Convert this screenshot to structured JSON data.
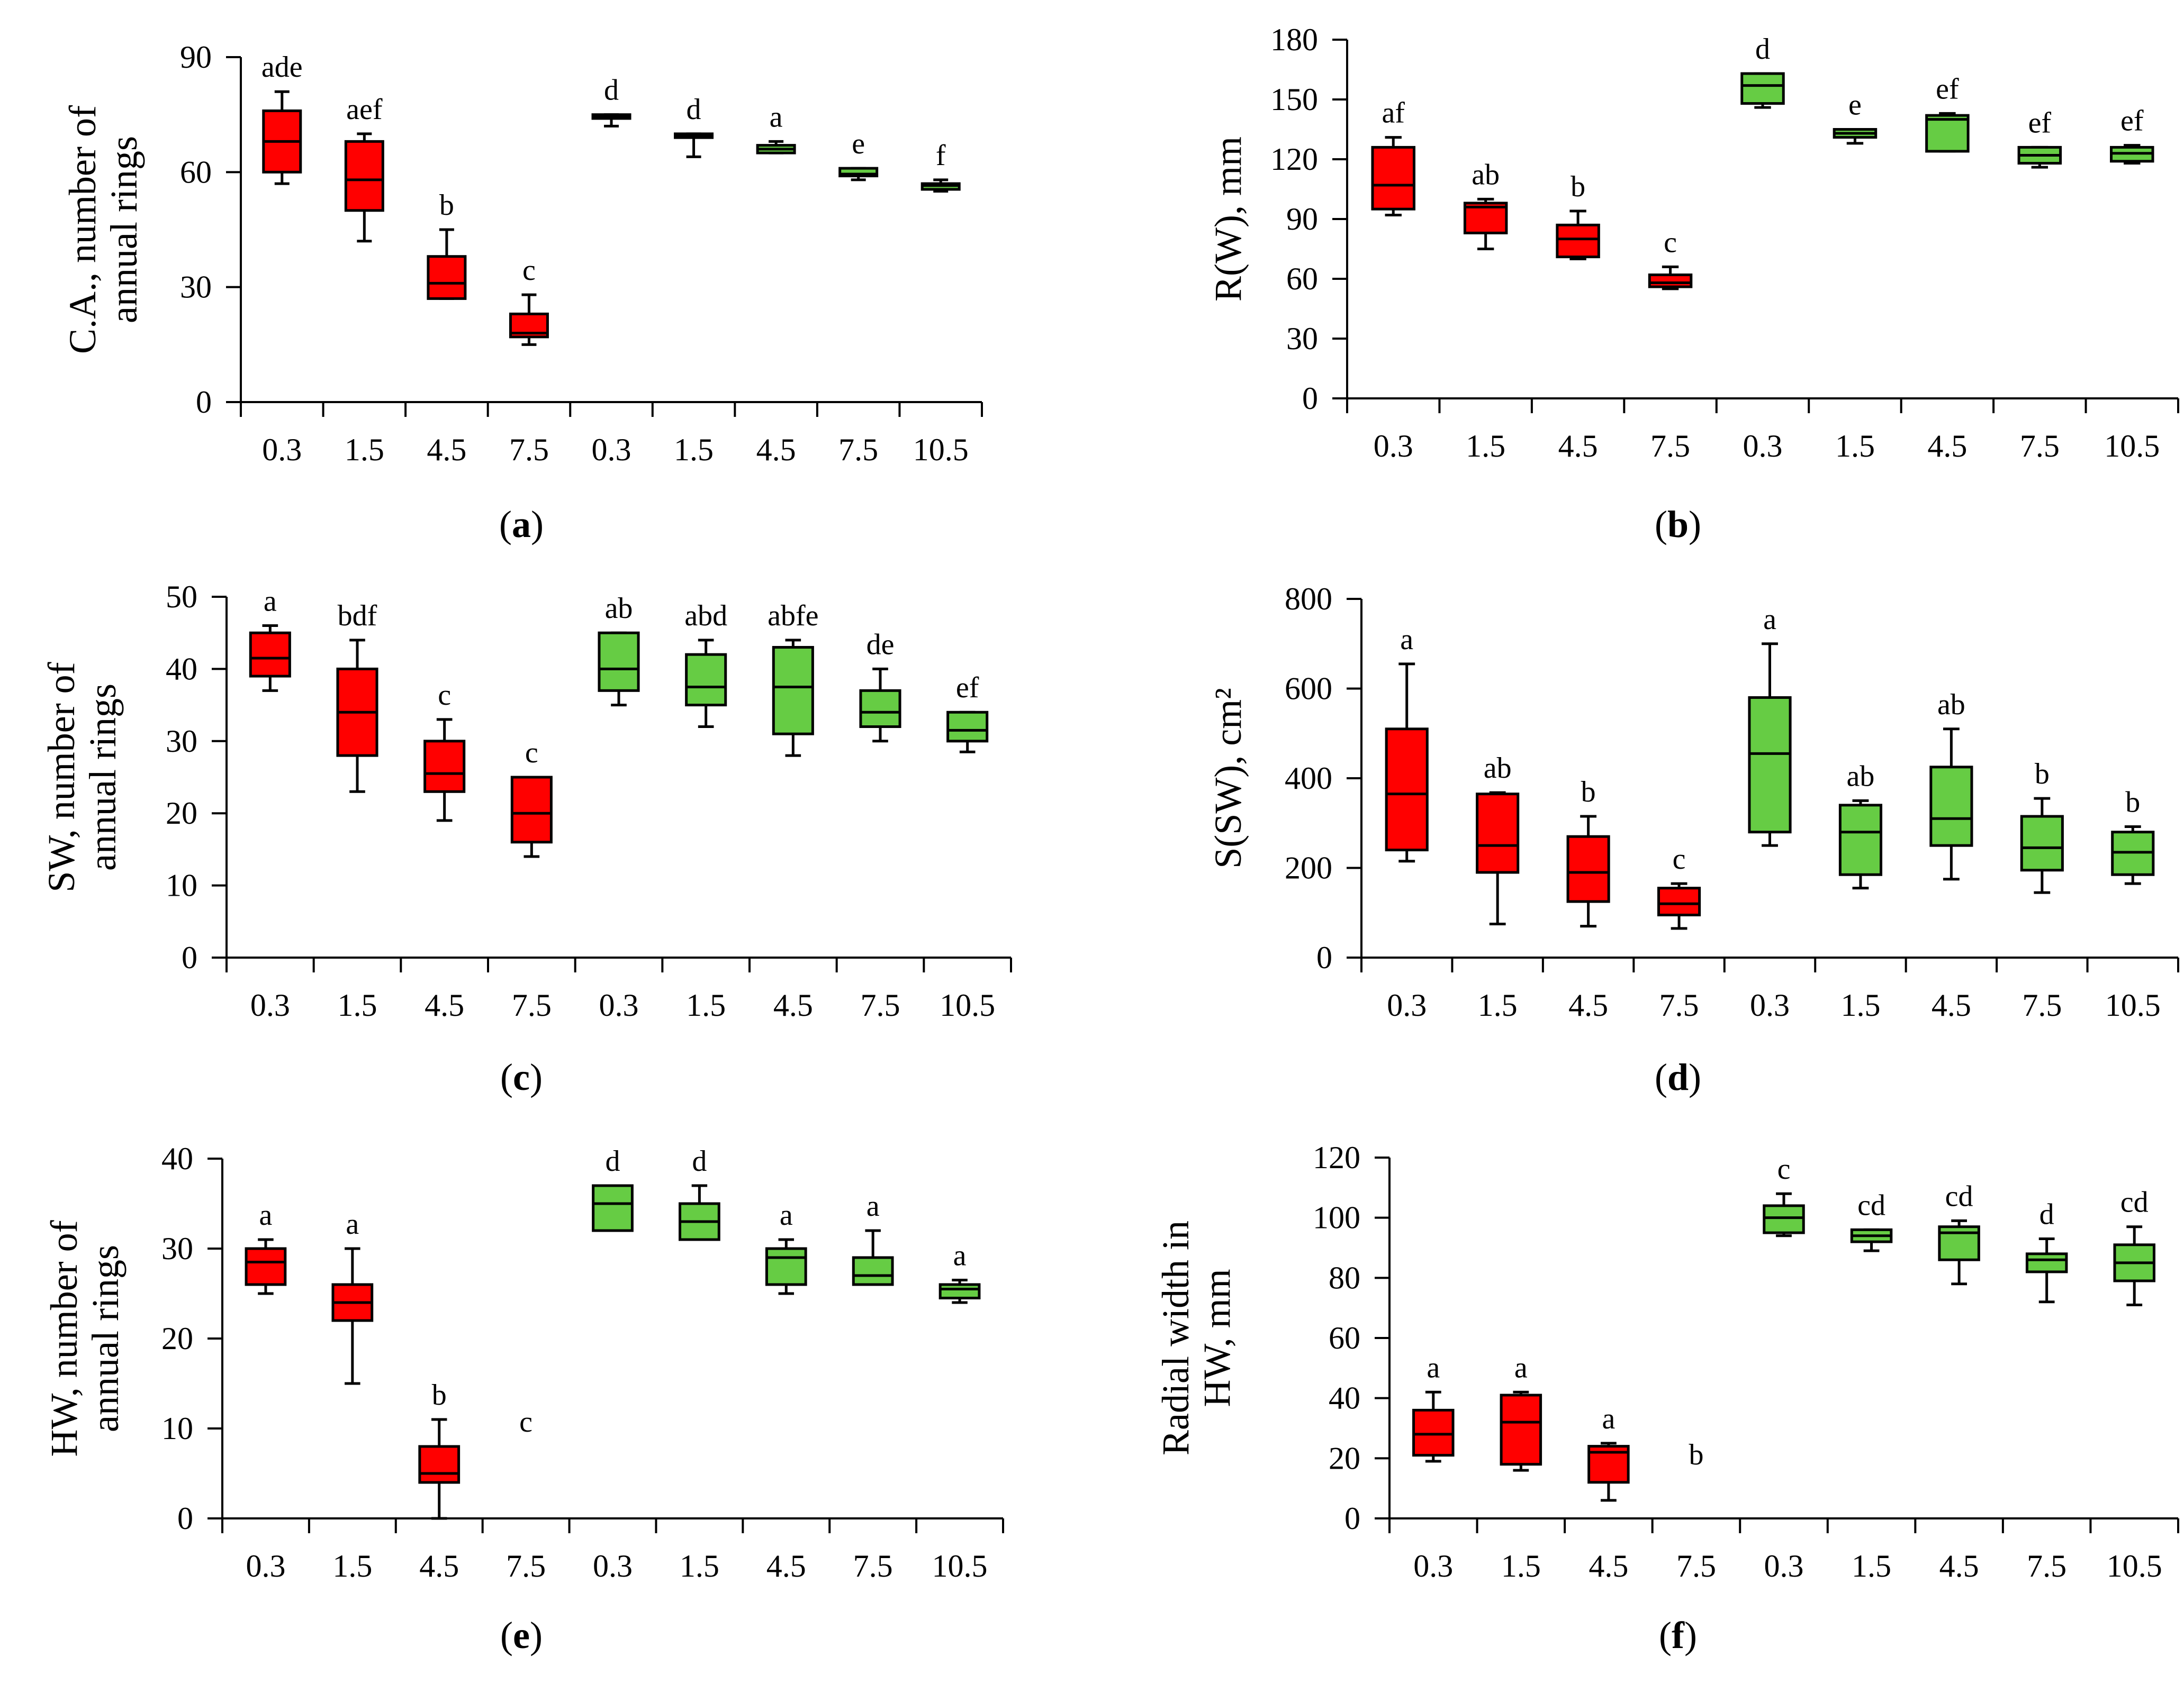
{
  "colors": {
    "red": "#ff0000",
    "green": "#66cc44",
    "stroke": "#000000"
  },
  "chart_data": [
    {
      "panel": "a",
      "caption": "a",
      "type": "box",
      "ylabel": [
        "C.A., number of",
        "annual rings"
      ],
      "ylim": [
        0,
        90
      ],
      "yticks": [
        0,
        30,
        60,
        90
      ],
      "categories": [
        "0.3",
        "1.5",
        "4.5",
        "7.5",
        "0.3",
        "1.5",
        "4.5",
        "7.5",
        "10.5"
      ],
      "boxes": [
        {
          "min": 57,
          "q1": 60,
          "median": 68,
          "q3": 76,
          "max": 81,
          "color": "red",
          "label": "ade"
        },
        {
          "min": 42,
          "q1": 50,
          "median": 58,
          "q3": 68,
          "max": 70,
          "color": "red",
          "label": "aef"
        },
        {
          "min": 27,
          "q1": 27,
          "median": 31,
          "q3": 38,
          "max": 45,
          "color": "red",
          "label": "b"
        },
        {
          "min": 15,
          "q1": 17,
          "median": 18,
          "q3": 23,
          "max": 28,
          "color": "red",
          "label": "c"
        },
        {
          "min": 72,
          "q1": 74,
          "median": 74.5,
          "q3": 75,
          "max": 75,
          "color": "green",
          "label": "d"
        },
        {
          "min": 64,
          "q1": 69,
          "median": 69.5,
          "q3": 70,
          "max": 70,
          "color": "green",
          "label": "d"
        },
        {
          "min": 65,
          "q1": 65,
          "median": 66,
          "q3": 67,
          "max": 68,
          "color": "green",
          "label": "a"
        },
        {
          "min": 58,
          "q1": 59,
          "median": 59.5,
          "q3": 61,
          "max": 61,
          "color": "green",
          "label": "e"
        },
        {
          "min": 55,
          "q1": 55.5,
          "median": 56.5,
          "q3": 57,
          "max": 58,
          "color": "green",
          "label": "f"
        }
      ]
    },
    {
      "panel": "b",
      "caption": "b",
      "type": "box",
      "ylabel": [
        "R(W), mm"
      ],
      "ylim": [
        0,
        180
      ],
      "yticks": [
        0,
        30,
        60,
        90,
        120,
        150,
        180
      ],
      "categories": [
        "0.3",
        "1.5",
        "4.5",
        "7.5",
        "0.3",
        "1.5",
        "4.5",
        "7.5",
        "10.5"
      ],
      "boxes": [
        {
          "min": 92,
          "q1": 95,
          "median": 107,
          "q3": 126,
          "max": 131,
          "color": "red",
          "label": "af"
        },
        {
          "min": 75,
          "q1": 83,
          "median": 96,
          "q3": 98,
          "max": 100,
          "color": "red",
          "label": "ab"
        },
        {
          "min": 70,
          "q1": 71,
          "median": 80,
          "q3": 87,
          "max": 94,
          "color": "red",
          "label": "b"
        },
        {
          "min": 55,
          "q1": 56,
          "median": 58,
          "q3": 62,
          "max": 66,
          "color": "red",
          "label": "c"
        },
        {
          "min": 146,
          "q1": 148,
          "median": 157,
          "q3": 163,
          "max": 163,
          "color": "green",
          "label": "d"
        },
        {
          "min": 128,
          "q1": 131,
          "median": 133,
          "q3": 135,
          "max": 135,
          "color": "green",
          "label": "e"
        },
        {
          "min": 124,
          "q1": 124,
          "median": 140,
          "q3": 142,
          "max": 143,
          "color": "green",
          "label": "ef"
        },
        {
          "min": 116,
          "q1": 118,
          "median": 122,
          "q3": 126,
          "max": 126,
          "color": "green",
          "label": "ef"
        },
        {
          "min": 118,
          "q1": 119,
          "median": 123,
          "q3": 126,
          "max": 127,
          "color": "green",
          "label": "ef"
        }
      ]
    },
    {
      "panel": "c",
      "caption": "c",
      "type": "box",
      "ylabel": [
        "SW, number of",
        "annual rings"
      ],
      "ylim": [
        0,
        50
      ],
      "yticks": [
        0,
        10,
        20,
        30,
        40,
        50
      ],
      "categories": [
        "0.3",
        "1.5",
        "4.5",
        "7.5",
        "0.3",
        "1.5",
        "4.5",
        "7.5",
        "10.5"
      ],
      "boxes": [
        {
          "min": 37,
          "q1": 39,
          "median": 41.5,
          "q3": 45,
          "max": 46,
          "color": "red",
          "label": "a"
        },
        {
          "min": 23,
          "q1": 28,
          "median": 34,
          "q3": 40,
          "max": 44,
          "color": "red",
          "label": "bdf"
        },
        {
          "min": 19,
          "q1": 23,
          "median": 25.5,
          "q3": 30,
          "max": 33,
          "color": "red",
          "label": "c"
        },
        {
          "min": 14,
          "q1": 16,
          "median": 20,
          "q3": 25,
          "max": 25,
          "color": "red",
          "label": "c"
        },
        {
          "min": 35,
          "q1": 37,
          "median": 40,
          "q3": 45,
          "max": 45,
          "color": "green",
          "label": "ab"
        },
        {
          "min": 32,
          "q1": 35,
          "median": 37.5,
          "q3": 42,
          "max": 44,
          "color": "green",
          "label": "abd"
        },
        {
          "min": 28,
          "q1": 31,
          "median": 37.5,
          "q3": 43,
          "max": 44,
          "color": "green",
          "label": "abfe"
        },
        {
          "min": 30,
          "q1": 32,
          "median": 34,
          "q3": 37,
          "max": 40,
          "color": "green",
          "label": "de"
        },
        {
          "min": 28.5,
          "q1": 30,
          "median": 31.5,
          "q3": 34,
          "max": 34,
          "color": "green",
          "label": "ef"
        }
      ]
    },
    {
      "panel": "d",
      "caption": "d",
      "type": "box",
      "ylabel": [
        "S(SW), cm²"
      ],
      "ylim": [
        0,
        800
      ],
      "yticks": [
        0,
        200,
        400,
        600,
        800
      ],
      "categories": [
        "0.3",
        "1.5",
        "4.5",
        "7.5",
        "0.3",
        "1.5",
        "4.5",
        "7.5",
        "10.5"
      ],
      "boxes": [
        {
          "min": 215,
          "q1": 240,
          "median": 365,
          "q3": 510,
          "max": 655,
          "color": "red",
          "label": "a"
        },
        {
          "min": 75,
          "q1": 190,
          "median": 250,
          "q3": 365,
          "max": 368,
          "color": "red",
          "label": "ab"
        },
        {
          "min": 70,
          "q1": 125,
          "median": 190,
          "q3": 270,
          "max": 315,
          "color": "red",
          "label": "b"
        },
        {
          "min": 65,
          "q1": 95,
          "median": 120,
          "q3": 155,
          "max": 165,
          "color": "red",
          "label": "c"
        },
        {
          "min": 250,
          "q1": 280,
          "median": 455,
          "q3": 580,
          "max": 700,
          "color": "green",
          "label": "a"
        },
        {
          "min": 155,
          "q1": 185,
          "median": 280,
          "q3": 340,
          "max": 350,
          "color": "green",
          "label": "ab"
        },
        {
          "min": 175,
          "q1": 250,
          "median": 310,
          "q3": 425,
          "max": 510,
          "color": "green",
          "label": "ab"
        },
        {
          "min": 145,
          "q1": 195,
          "median": 245,
          "q3": 315,
          "max": 355,
          "color": "green",
          "label": "b"
        },
        {
          "min": 165,
          "q1": 185,
          "median": 235,
          "q3": 280,
          "max": 292,
          "color": "green",
          "label": "b"
        }
      ]
    },
    {
      "panel": "e",
      "caption": "e",
      "type": "box",
      "ylabel": [
        "HW, number of",
        "annual rings"
      ],
      "ylim": [
        0,
        40
      ],
      "yticks": [
        0,
        10,
        20,
        30,
        40
      ],
      "categories": [
        "0.3",
        "1.5",
        "4.5",
        "7.5",
        "0.3",
        "1.5",
        "4.5",
        "7.5",
        "10.5"
      ],
      "boxes": [
        {
          "min": 25,
          "q1": 26,
          "median": 28.5,
          "q3": 30,
          "max": 31,
          "color": "red",
          "label": "a"
        },
        {
          "min": 15,
          "q1": 22,
          "median": 24,
          "q3": 26,
          "max": 30,
          "color": "red",
          "label": "a"
        },
        {
          "min": 0,
          "q1": 4,
          "median": 5,
          "q3": 8,
          "max": 11,
          "color": "red",
          "label": "b"
        },
        {
          "color": "red",
          "label": "c",
          "empty": true,
          "label_value": 8
        },
        {
          "min": 32,
          "q1": 32,
          "median": 35,
          "q3": 37,
          "max": 37,
          "color": "green",
          "label": "d"
        },
        {
          "min": 31,
          "q1": 31,
          "median": 33,
          "q3": 35,
          "max": 37,
          "color": "green",
          "label": "d"
        },
        {
          "min": 25,
          "q1": 26,
          "median": 29,
          "q3": 30,
          "max": 31,
          "color": "green",
          "label": "a"
        },
        {
          "min": 26,
          "q1": 26,
          "median": 27,
          "q3": 29,
          "max": 32,
          "color": "green",
          "label": "a"
        },
        {
          "min": 24,
          "q1": 24.5,
          "median": 25.5,
          "q3": 26,
          "max": 26.5,
          "color": "green",
          "label": "a"
        }
      ]
    },
    {
      "panel": "f",
      "caption": "f",
      "type": "box",
      "ylabel": [
        "Radial width in",
        "HW, mm"
      ],
      "ylim": [
        0,
        120
      ],
      "yticks": [
        0,
        20,
        40,
        60,
        80,
        100,
        120
      ],
      "categories": [
        "0.3",
        "1.5",
        "4.5",
        "7.5",
        "0.3",
        "1.5",
        "4.5",
        "7.5",
        "10.5"
      ],
      "boxes": [
        {
          "min": 19,
          "q1": 21,
          "median": 28,
          "q3": 36,
          "max": 42,
          "color": "red",
          "label": "a"
        },
        {
          "min": 16,
          "q1": 18,
          "median": 32,
          "q3": 41,
          "max": 42,
          "color": "red",
          "label": "a"
        },
        {
          "min": 6,
          "q1": 12,
          "median": 22,
          "q3": 24,
          "max": 25,
          "color": "red",
          "label": "a"
        },
        {
          "color": "red",
          "label": "b",
          "empty": true,
          "label_value": 13
        },
        {
          "min": 94,
          "q1": 95,
          "median": 100,
          "q3": 104,
          "max": 108,
          "color": "green",
          "label": "c"
        },
        {
          "min": 89,
          "q1": 92,
          "median": 94,
          "q3": 96,
          "max": 96,
          "color": "green",
          "label": "cd"
        },
        {
          "min": 78,
          "q1": 86,
          "median": 95,
          "q3": 97,
          "max": 99,
          "color": "green",
          "label": "cd"
        },
        {
          "min": 72,
          "q1": 82,
          "median": 86,
          "q3": 88,
          "max": 93,
          "color": "green",
          "label": "d"
        },
        {
          "min": 71,
          "q1": 79,
          "median": 85,
          "q3": 91,
          "max": 97,
          "color": "green",
          "label": "cd"
        }
      ]
    }
  ]
}
